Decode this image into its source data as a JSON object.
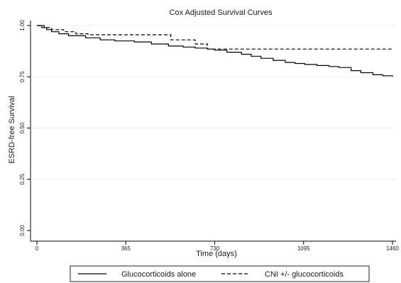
{
  "chart_data": {
    "type": "line",
    "title": "Cox Adjusted Survival Curves",
    "xlabel": "Time (days)",
    "ylabel": "ESRD-free Survival",
    "xlim": [
      0,
      1460
    ],
    "ylim": [
      0,
      1
    ],
    "xticks": [
      0,
      365,
      730,
      1095,
      1460
    ],
    "xtick_labels": [
      "0",
      "365",
      "730",
      "1095",
      "1460"
    ],
    "yticks": [
      0,
      0.25,
      0.5,
      0.75,
      1
    ],
    "ytick_labels": [
      "0.00",
      "0.25",
      "0.50",
      "0.75",
      "1.00"
    ],
    "grid": "horizontal",
    "legend_position": "bottom",
    "series": [
      {
        "name": "Glucocorticoids alone",
        "style": "solid",
        "color": "#000000",
        "x": [
          0,
          20,
          40,
          60,
          90,
          130,
          200,
          260,
          320,
          400,
          470,
          540,
          600,
          650,
          700,
          730,
          780,
          840,
          880,
          920,
          970,
          1020,
          1060,
          1100,
          1150,
          1200,
          1240,
          1290,
          1330,
          1380,
          1420,
          1460
        ],
        "y": [
          1.0,
          0.99,
          0.98,
          0.97,
          0.96,
          0.95,
          0.94,
          0.93,
          0.925,
          0.92,
          0.91,
          0.9,
          0.895,
          0.89,
          0.885,
          0.88,
          0.87,
          0.86,
          0.85,
          0.84,
          0.83,
          0.82,
          0.815,
          0.81,
          0.805,
          0.8,
          0.795,
          0.78,
          0.77,
          0.76,
          0.755,
          0.75
        ]
      },
      {
        "name": "CNI +/- glucocorticoids",
        "style": "dashed",
        "color": "#000000",
        "x": [
          0,
          30,
          60,
          110,
          160,
          210,
          480,
          550,
          650,
          700,
          1460
        ],
        "y": [
          1.0,
          0.99,
          0.98,
          0.97,
          0.96,
          0.955,
          0.955,
          0.93,
          0.91,
          0.885,
          0.885
        ]
      }
    ]
  }
}
